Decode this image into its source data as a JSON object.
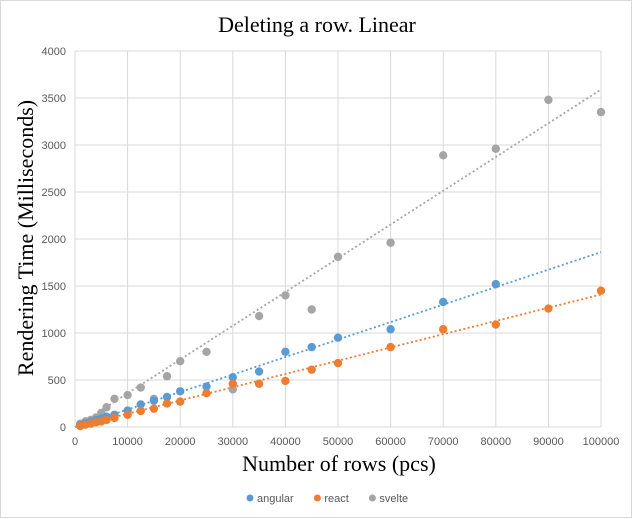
{
  "chart_data": {
    "type": "scatter",
    "title": "Deleting a row. Linear",
    "xlabel": "Number of rows (pcs)",
    "ylabel": "Rendering Time (Milliseconds)",
    "xlim": [
      0,
      100000
    ],
    "ylim": [
      0,
      4000
    ],
    "x_ticks": [
      0,
      10000,
      20000,
      30000,
      40000,
      50000,
      60000,
      70000,
      80000,
      90000,
      100000
    ],
    "y_ticks": [
      0,
      500,
      1000,
      1500,
      2000,
      2500,
      3000,
      3500,
      4000
    ],
    "grid": true,
    "legend_position": "bottom",
    "series": [
      {
        "name": "angular",
        "color": "#5b9bd5",
        "x": [
          1000,
          2000,
          3000,
          4000,
          5000,
          6000,
          7500,
          10000,
          12500,
          15000,
          17500,
          20000,
          25000,
          30000,
          35000,
          40000,
          45000,
          50000,
          60000,
          70000,
          80000
        ],
        "y": [
          20,
          40,
          55,
          75,
          90,
          110,
          130,
          175,
          240,
          280,
          320,
          380,
          430,
          530,
          590,
          800,
          850,
          950,
          1040,
          1330,
          1520
        ],
        "trendline": [
          [
            0,
            0
          ],
          [
            100000,
            1860
          ]
        ]
      },
      {
        "name": "react",
        "color": "#ed7d31",
        "x": [
          1000,
          2000,
          3000,
          4000,
          5000,
          6000,
          7500,
          10000,
          12500,
          15000,
          17500,
          20000,
          25000,
          30000,
          35000,
          40000,
          45000,
          50000,
          60000,
          70000,
          80000,
          90000,
          100000
        ],
        "y": [
          10,
          25,
          35,
          50,
          60,
          75,
          95,
          130,
          170,
          195,
          250,
          270,
          360,
          460,
          460,
          490,
          610,
          680,
          850,
          1040,
          1090,
          1260,
          1450
        ],
        "trendline": [
          [
            0,
            0
          ],
          [
            100000,
            1410
          ]
        ]
      },
      {
        "name": "svelte",
        "color": "#a5a5a5",
        "x": [
          1000,
          2000,
          3000,
          4000,
          5000,
          6000,
          7500,
          10000,
          12500,
          15000,
          17500,
          20000,
          25000,
          30000,
          35000,
          40000,
          45000,
          50000,
          60000,
          70000,
          80000,
          90000,
          100000
        ],
        "y": [
          35,
          60,
          75,
          100,
          150,
          210,
          300,
          340,
          420,
          300,
          540,
          700,
          800,
          400,
          1180,
          1400,
          1250,
          1810,
          1960,
          2890,
          2960,
          3480,
          3350
        ],
        "trendline": [
          [
            0,
            0
          ],
          [
            100000,
            3590
          ]
        ]
      }
    ]
  }
}
